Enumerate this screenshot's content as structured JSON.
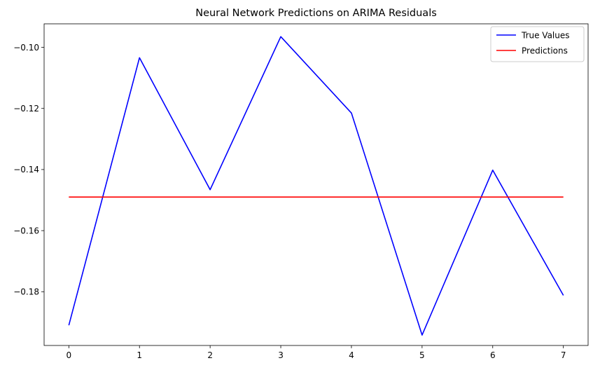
{
  "chart_data": {
    "type": "line",
    "title": "Neural Network Predictions on ARIMA Residuals",
    "xlabel": "",
    "ylabel": "",
    "x": [
      0,
      1,
      2,
      3,
      4,
      5,
      6,
      7
    ],
    "xticks": [
      "0",
      "1",
      "2",
      "3",
      "4",
      "5",
      "6",
      "7"
    ],
    "yticks": [
      "−0.10",
      "−0.12",
      "−0.14",
      "−0.16",
      "−0.18"
    ],
    "ytick_values": [
      -0.1,
      -0.12,
      -0.14,
      -0.16,
      -0.18
    ],
    "xlim": [
      -0.35,
      7.35
    ],
    "ylim": [
      -0.1976,
      -0.0923
    ],
    "grid": false,
    "legend_position": "top-right",
    "series": [
      {
        "name": "True Values",
        "color": "#0000ff",
        "values": [
          -0.191,
          -0.1034,
          -0.1466,
          -0.0965,
          -0.1215,
          -0.1942,
          -0.1402,
          -0.1812
        ]
      },
      {
        "name": "Predictions",
        "color": "#ff0000",
        "values": [
          -0.149,
          -0.149,
          -0.149,
          -0.149,
          -0.149,
          -0.149,
          -0.149,
          -0.149
        ]
      }
    ]
  }
}
